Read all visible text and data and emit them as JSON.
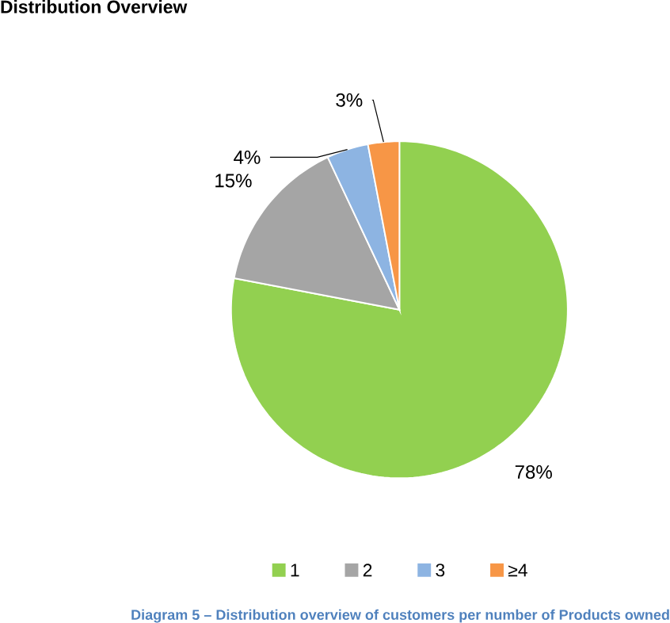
{
  "chart_data": {
    "type": "pie",
    "title": "Distribution Overview",
    "categories": [
      "1",
      "2",
      "3",
      "≥4"
    ],
    "values": [
      78,
      15,
      4,
      3
    ],
    "value_labels": [
      "78%",
      "15%",
      "4%",
      "3%"
    ],
    "colors": [
      "#92d050",
      "#a5a5a5",
      "#8db4e2",
      "#f79646"
    ],
    "legend": "bottom",
    "annotations": [
      "Diagram 5 – Distribution overview of customers per number of Products owned"
    ]
  }
}
